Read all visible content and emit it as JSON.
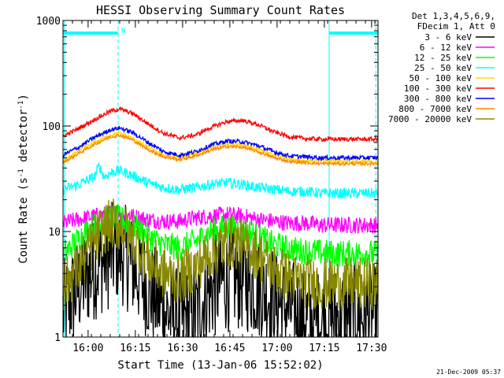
{
  "chart_data": {
    "type": "line",
    "title": "HESSI Observing Summary Count Rates",
    "xlabel": "Start Time (13-Jan-06 15:52:02)",
    "ylabel_main": "Count Rate (s",
    "ylabel_sup1": "-1",
    "ylabel_mid": " detector",
    "ylabel_sup2": "-1",
    "ylabel_end": ")",
    "footer_date": "21-Dec-2009 05:37",
    "y_scale": "log",
    "ylim": [
      1,
      1000
    ],
    "x_unit": "minutes since 15:52:02",
    "xlim": [
      0,
      100
    ],
    "x_ticks": [
      {
        "label": "16:00",
        "value": 7.97
      },
      {
        "label": "16:15",
        "value": 22.97
      },
      {
        "label": "16:30",
        "value": 37.97
      },
      {
        "label": "16:45",
        "value": 52.97
      },
      {
        "label": "17:00",
        "value": 67.97
      },
      {
        "label": "17:15",
        "value": 82.97
      },
      {
        "label": "17:30",
        "value": 97.97
      }
    ],
    "y_ticks": [
      {
        "label": "1",
        "value": 1
      },
      {
        "label": "10",
        "value": 10
      },
      {
        "label": "100",
        "value": 100
      },
      {
        "label": "1000",
        "value": 1000
      }
    ],
    "legend": {
      "header1": "Det 1,3,4,5,6,9,",
      "header2": "FDecim 1, Att 0",
      "placement": "right"
    },
    "intervals": [
      {
        "type": "night",
        "x": [
          0,
          17.5
        ],
        "label": ""
      },
      {
        "type": "night",
        "x": [
          84.5,
          100
        ],
        "label": ""
      },
      {
        "type": "saa",
        "x": [
          17.5,
          17.5
        ],
        "label": "N"
      }
    ],
    "vlines": [
      {
        "x": 0.5,
        "style": "solid",
        "color": "#00ffff"
      },
      {
        "x": 17.5,
        "style": "dashed",
        "color": "#00ffff"
      },
      {
        "x": 84.5,
        "style": "solid",
        "color": "#00ffff"
      },
      {
        "x": 99.3,
        "style": "dashed",
        "color": "#00ffff"
      }
    ],
    "series": [
      {
        "name": "3 - 6 keV",
        "color": "#000000",
        "noise": 0.5,
        "points": [
          [
            0,
            1.7
          ],
          [
            3,
            2.4
          ],
          [
            6,
            3.3
          ],
          [
            9,
            4.2
          ],
          [
            12,
            5.0
          ],
          [
            15,
            5.8
          ],
          [
            17,
            6.6
          ],
          [
            19,
            6.1
          ],
          [
            21,
            5.2
          ],
          [
            23,
            4.3
          ],
          [
            25,
            3.6
          ],
          [
            28,
            2.6
          ],
          [
            31,
            2.0
          ],
          [
            34,
            1.6
          ],
          [
            38,
            1.4
          ],
          [
            42,
            1.7
          ],
          [
            46,
            2.6
          ],
          [
            50,
            3.3
          ],
          [
            54,
            3.6
          ],
          [
            57,
            3.5
          ],
          [
            60,
            3.2
          ],
          [
            64,
            2.7
          ],
          [
            68,
            2.2
          ],
          [
            72,
            1.8
          ],
          [
            76,
            1.6
          ],
          [
            80,
            1.4
          ],
          [
            84,
            1.5
          ],
          [
            88,
            1.6
          ],
          [
            92,
            1.6
          ],
          [
            96,
            1.6
          ],
          [
            100,
            1.6
          ]
        ]
      },
      {
        "name": "6 - 12 keV",
        "color": "#ff00ff",
        "noise": 0.08,
        "points": [
          [
            0,
            12
          ],
          [
            5,
            13
          ],
          [
            10,
            14
          ],
          [
            15,
            15
          ],
          [
            18,
            15
          ],
          [
            22,
            14
          ],
          [
            27,
            13
          ],
          [
            32,
            12.5
          ],
          [
            37,
            12.5
          ],
          [
            42,
            13.5
          ],
          [
            47,
            14
          ],
          [
            52,
            14.5
          ],
          [
            57,
            14
          ],
          [
            62,
            13
          ],
          [
            67,
            12.5
          ],
          [
            72,
            12
          ],
          [
            77,
            12
          ],
          [
            82,
            11.5
          ],
          [
            87,
            11.5
          ],
          [
            92,
            11.5
          ],
          [
            97,
            11.5
          ],
          [
            100,
            11.5
          ]
        ]
      },
      {
        "name": "12 - 25 keV",
        "color": "#00ff00",
        "noise": 0.13,
        "points": [
          [
            0,
            6
          ],
          [
            4,
            8
          ],
          [
            8,
            10.5
          ],
          [
            12,
            12.5
          ],
          [
            16,
            13.5
          ],
          [
            19,
            13
          ],
          [
            23,
            11
          ],
          [
            27,
            9
          ],
          [
            32,
            7.5
          ],
          [
            37,
            7
          ],
          [
            42,
            8
          ],
          [
            47,
            10
          ],
          [
            52,
            11
          ],
          [
            57,
            10.5
          ],
          [
            62,
            9
          ],
          [
            67,
            7.5
          ],
          [
            72,
            6.8
          ],
          [
            77,
            6.5
          ],
          [
            82,
            6.3
          ],
          [
            87,
            6.2
          ],
          [
            92,
            6.2
          ],
          [
            97,
            6.2
          ],
          [
            100,
            6.2
          ]
        ]
      },
      {
        "name": "25 - 50 keV",
        "color": "#00ffff",
        "noise": 0.05,
        "points": [
          [
            0,
            25
          ],
          [
            5,
            28
          ],
          [
            10,
            33
          ],
          [
            11.5,
            42
          ],
          [
            13,
            33
          ],
          [
            16,
            37
          ],
          [
            18,
            38
          ],
          [
            22,
            34
          ],
          [
            27,
            29
          ],
          [
            32,
            26
          ],
          [
            37,
            25
          ],
          [
            42,
            26
          ],
          [
            47,
            28
          ],
          [
            52,
            29
          ],
          [
            57,
            28
          ],
          [
            62,
            26
          ],
          [
            67,
            25
          ],
          [
            72,
            24
          ],
          [
            77,
            24
          ],
          [
            82,
            23
          ],
          [
            87,
            23
          ],
          [
            92,
            23
          ],
          [
            97,
            23
          ],
          [
            100,
            23
          ]
        ]
      },
      {
        "name": "50 - 100 keV",
        "color": "#ffdd00",
        "noise": 0.015,
        "points": [
          [
            0,
            47
          ],
          [
            5,
            58
          ],
          [
            10,
            70
          ],
          [
            15,
            82
          ],
          [
            18,
            86
          ],
          [
            22,
            77
          ],
          [
            27,
            63
          ],
          [
            32,
            53
          ],
          [
            37,
            50
          ],
          [
            42,
            55
          ],
          [
            47,
            62
          ],
          [
            52,
            67
          ],
          [
            57,
            66
          ],
          [
            62,
            60
          ],
          [
            67,
            53
          ],
          [
            72,
            49
          ],
          [
            77,
            47
          ],
          [
            82,
            47
          ],
          [
            87,
            47
          ],
          [
            92,
            46
          ],
          [
            97,
            46
          ],
          [
            100,
            46
          ]
        ]
      },
      {
        "name": "100 - 300 keV",
        "color": "#ff0000",
        "noise": 0.02,
        "points": [
          [
            0,
            80
          ],
          [
            5,
            95
          ],
          [
            10,
            115
          ],
          [
            15,
            138
          ],
          [
            18,
            145
          ],
          [
            22,
            132
          ],
          [
            27,
            105
          ],
          [
            32,
            85
          ],
          [
            37,
            77
          ],
          [
            42,
            82
          ],
          [
            47,
            97
          ],
          [
            52,
            110
          ],
          [
            57,
            113
          ],
          [
            62,
            103
          ],
          [
            67,
            88
          ],
          [
            72,
            79
          ],
          [
            77,
            76
          ],
          [
            82,
            75
          ],
          [
            87,
            75
          ],
          [
            92,
            75
          ],
          [
            97,
            75
          ],
          [
            100,
            75
          ]
        ]
      },
      {
        "name": "300 - 800 keV",
        "color": "#0000ff",
        "noise": 0.02,
        "points": [
          [
            0,
            53
          ],
          [
            5,
            63
          ],
          [
            10,
            78
          ],
          [
            15,
            92
          ],
          [
            18,
            96
          ],
          [
            22,
            87
          ],
          [
            27,
            70
          ],
          [
            32,
            57
          ],
          [
            37,
            53
          ],
          [
            42,
            57
          ],
          [
            47,
            66
          ],
          [
            52,
            72
          ],
          [
            57,
            71
          ],
          [
            62,
            65
          ],
          [
            67,
            57
          ],
          [
            72,
            52
          ],
          [
            77,
            51
          ],
          [
            82,
            50
          ],
          [
            87,
            50
          ],
          [
            92,
            50
          ],
          [
            97,
            50
          ],
          [
            100,
            50
          ]
        ]
      },
      {
        "name": "800 - 7000 keV",
        "color": "#ff8800",
        "noise": 0.015,
        "points": [
          [
            0,
            45
          ],
          [
            5,
            55
          ],
          [
            10,
            67
          ],
          [
            15,
            79
          ],
          [
            18,
            82
          ],
          [
            22,
            74
          ],
          [
            27,
            60
          ],
          [
            32,
            51
          ],
          [
            37,
            48
          ],
          [
            42,
            52
          ],
          [
            47,
            59
          ],
          [
            52,
            64
          ],
          [
            57,
            63
          ],
          [
            62,
            57
          ],
          [
            67,
            50
          ],
          [
            72,
            46
          ],
          [
            77,
            45
          ],
          [
            82,
            44
          ],
          [
            87,
            44
          ],
          [
            92,
            44
          ],
          [
            97,
            44
          ],
          [
            100,
            44
          ]
        ]
      },
      {
        "name": "7000 - 20000 keV",
        "color": "#888800",
        "noise": 0.25,
        "points": [
          [
            0,
            3
          ],
          [
            4,
            4.2
          ],
          [
            8,
            6.5
          ],
          [
            12,
            10
          ],
          [
            16,
            12
          ],
          [
            19,
            11
          ],
          [
            23,
            8
          ],
          [
            27,
            5.5
          ],
          [
            32,
            4
          ],
          [
            37,
            3.6
          ],
          [
            42,
            4.5
          ],
          [
            47,
            6.5
          ],
          [
            52,
            8
          ],
          [
            57,
            7.5
          ],
          [
            62,
            6
          ],
          [
            67,
            4.5
          ],
          [
            72,
            3.6
          ],
          [
            77,
            3.3
          ],
          [
            82,
            3.2
          ],
          [
            87,
            3.2
          ],
          [
            92,
            3.2
          ],
          [
            97,
            3.2
          ],
          [
            100,
            3.2
          ]
        ]
      }
    ]
  }
}
